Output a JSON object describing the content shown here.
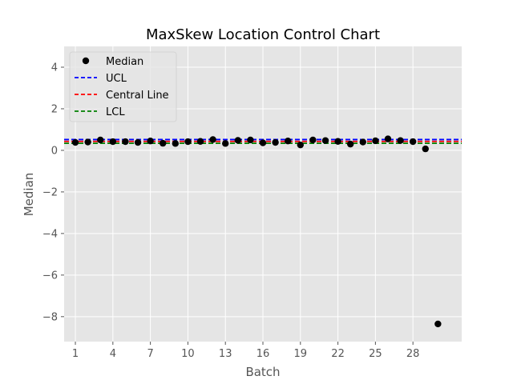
{
  "chart_data": {
    "type": "scatter",
    "title": "MaxSkew Location Control Chart",
    "xlabel": "Batch",
    "ylabel": "Median",
    "xlim": [
      0.1,
      31.9
    ],
    "ylim": [
      -9.2,
      5.0
    ],
    "x_ticks": [
      1,
      4,
      7,
      10,
      13,
      16,
      19,
      22,
      25,
      28
    ],
    "y_ticks": [
      4,
      2,
      0,
      -2,
      -4,
      -6,
      -8
    ],
    "y_tick_labels": [
      "4",
      "2",
      "0",
      "−2",
      "−4",
      "−6",
      "−8"
    ],
    "grid": true,
    "legend_position": "upper-left",
    "series": [
      {
        "name": "Median",
        "kind": "points",
        "color": "#000000",
        "x": [
          1,
          2,
          3,
          4,
          5,
          6,
          7,
          8,
          9,
          10,
          11,
          12,
          13,
          14,
          15,
          16,
          17,
          18,
          19,
          20,
          21,
          22,
          23,
          24,
          25,
          26,
          27,
          28,
          29,
          30
        ],
        "y": [
          0.38,
          0.4,
          0.5,
          0.42,
          0.42,
          0.38,
          0.45,
          0.34,
          0.33,
          0.42,
          0.43,
          0.52,
          0.33,
          0.48,
          0.5,
          0.36,
          0.38,
          0.45,
          0.26,
          0.5,
          0.47,
          0.43,
          0.3,
          0.4,
          0.46,
          0.55,
          0.47,
          0.42,
          0.07,
          -8.35
        ]
      },
      {
        "name": "UCL",
        "kind": "hline",
        "value": 0.52,
        "color": "#0000ff",
        "style": "dashed"
      },
      {
        "name": "Central Line",
        "kind": "hline",
        "value": 0.43,
        "color": "#ff0000",
        "style": "dashed"
      },
      {
        "name": "LCL",
        "kind": "hline",
        "value": 0.34,
        "color": "#008000",
        "style": "dashed"
      }
    ],
    "plot_background": "#e5e5e5",
    "grid_color": "#ffffff"
  }
}
